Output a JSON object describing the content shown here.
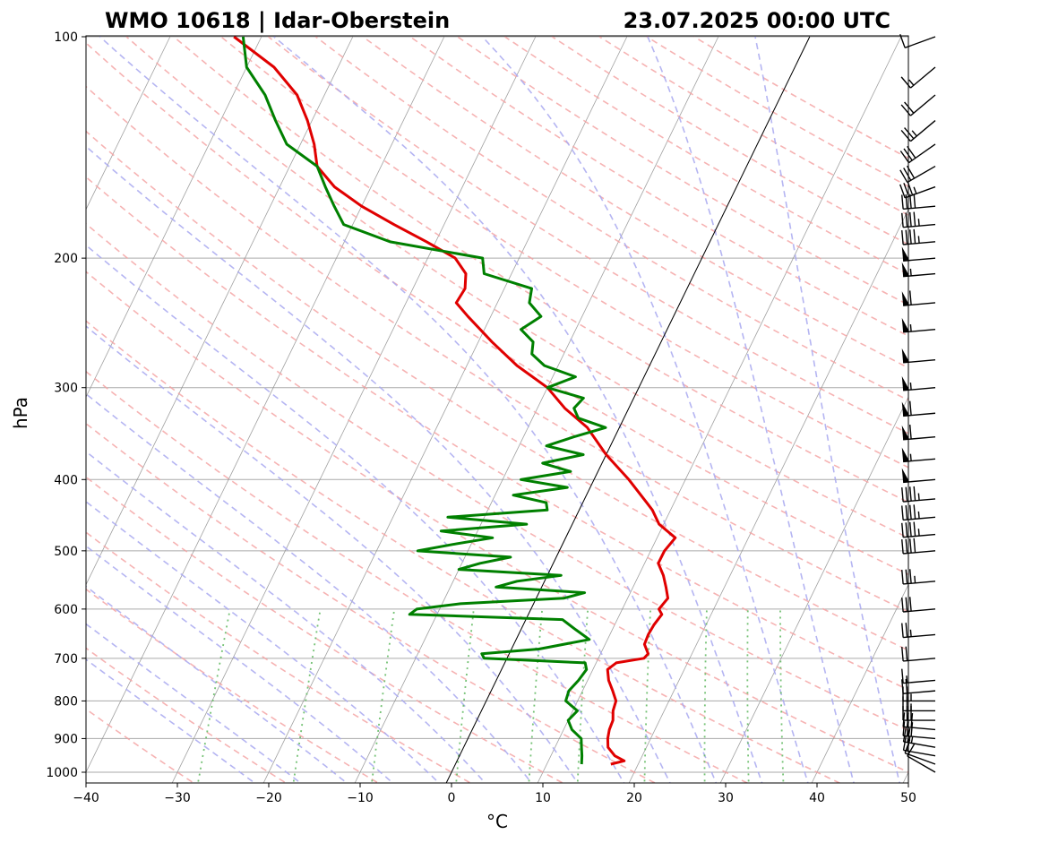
{
  "chart_data": {
    "type": "line",
    "subtype": "skew-T log-P diagram",
    "title_left": "WMO 10618 | Idar-Oberstein",
    "title_right": "23.07.2025 00:00 UTC",
    "xlabel": "°C",
    "ylabel": "hPa",
    "x_ticks": [
      -40,
      -30,
      -20,
      -10,
      0,
      10,
      20,
      30,
      40,
      50
    ],
    "y_ticks": [
      100,
      200,
      300,
      400,
      500,
      600,
      700,
      800,
      900,
      1000
    ],
    "xlim": [
      -40,
      50
    ],
    "ylim": [
      1050,
      100
    ],
    "y_scale": "log",
    "grid": true,
    "legend": "none",
    "colors": {
      "temperature": "#e00000",
      "dewpoint": "#008000",
      "dry_adiabats": "#f4a0a0",
      "moist_adiabats": "#a8a8f0",
      "mixing_ratio": "#66bb66",
      "isotherms": "#888888",
      "zero_isotherm": "#000000"
    },
    "series": [
      {
        "name": "temperature",
        "pressure": [
          975,
          965,
          950,
          925,
          900,
          875,
          850,
          825,
          800,
          775,
          750,
          725,
          710,
          700,
          690,
          670,
          650,
          630,
          610,
          600,
          580,
          560,
          540,
          520,
          500,
          480,
          460,
          440,
          430,
          400,
          370,
          340,
          320,
          300,
          280,
          260,
          240,
          230,
          220,
          210,
          200,
          190,
          180,
          170,
          160,
          150,
          140,
          130,
          120,
          110,
          100
        ],
        "values": [
          17.0,
          18.3,
          17.0,
          15.8,
          15.3,
          15.0,
          14.9,
          14.4,
          14.2,
          13.3,
          12.3,
          11.6,
          12.2,
          15.0,
          15.2,
          14.3,
          14.2,
          14.3,
          14.6,
          14.0,
          14.4,
          13.6,
          12.7,
          11.5,
          11.5,
          12.0,
          9.5,
          8.0,
          7.0,
          3.8,
          0.0,
          -3.5,
          -7.0,
          -10.0,
          -14.5,
          -18.5,
          -22.5,
          -24.5,
          -24.3,
          -25.0,
          -27.0,
          -31.0,
          -35.5,
          -40.0,
          -44.0,
          -47.0,
          -48.5,
          -50.5,
          -53.0,
          -57.0,
          -63.0
        ]
      },
      {
        "name": "dewpoint",
        "pressure": [
          975,
          950,
          925,
          900,
          875,
          850,
          825,
          800,
          775,
          750,
          725,
          710,
          700,
          690,
          680,
          660,
          640,
          620,
          610,
          600,
          590,
          580,
          570,
          560,
          550,
          540,
          530,
          520,
          510,
          500,
          490,
          480,
          470,
          460,
          450,
          440,
          430,
          420,
          410,
          400,
          390,
          380,
          370,
          360,
          350,
          340,
          330,
          320,
          310,
          300,
          290,
          280,
          270,
          260,
          250,
          240,
          230,
          220,
          210,
          200,
          190,
          180,
          170,
          160,
          150,
          140,
          130,
          120,
          110,
          100
        ],
        "values": [
          13.8,
          13.4,
          12.9,
          12.4,
          10.9,
          10.0,
          10.5,
          8.7,
          8.5,
          9.0,
          9.3,
          8.8,
          -2.5,
          -3.0,
          3.0,
          8.0,
          6.0,
          4.0,
          -13.0,
          -12.5,
          -8.0,
          3.0,
          5.0,
          -5.0,
          -3.0,
          1.5,
          -10.0,
          -8.0,
          -5.0,
          -15.5,
          -12.0,
          -8.0,
          -14.0,
          -5.0,
          -14.0,
          -3.5,
          -4.0,
          -8.0,
          -2.5,
          -8.0,
          -3.0,
          -6.5,
          -2.5,
          -7.0,
          -4.5,
          -1.5,
          -5.0,
          -6.0,
          -5.5,
          -10.0,
          -7.5,
          -11.5,
          -13.5,
          -14.0,
          -16.0,
          -14.5,
          -16.5,
          -17.0,
          -23.0,
          -24.0,
          -35.0,
          -41.0,
          -43.0,
          -45.0,
          -47.0,
          -51.5,
          -54.0,
          -56.5,
          -60.0,
          -62.0
        ]
      }
    ],
    "wind_barbs": {
      "pressure": [
        1000,
        975,
        950,
        925,
        900,
        875,
        850,
        825,
        800,
        775,
        750,
        700,
        650,
        600,
        550,
        500,
        475,
        450,
        425,
        400,
        375,
        350,
        325,
        300,
        275,
        250,
        230,
        210,
        200,
        190,
        180,
        170,
        160,
        150,
        140,
        130,
        120,
        110,
        100
      ],
      "speed_kt": [
        10,
        10,
        20,
        25,
        30,
        30,
        30,
        25,
        25,
        20,
        15,
        20,
        25,
        30,
        35,
        40,
        45,
        45,
        45,
        50,
        55,
        60,
        60,
        55,
        50,
        55,
        60,
        55,
        50,
        45,
        45,
        40,
        35,
        30,
        30,
        25,
        20,
        15,
        10
      ],
      "direction_deg": [
        300,
        290,
        280,
        280,
        275,
        275,
        270,
        270,
        270,
        265,
        265,
        265,
        265,
        265,
        265,
        265,
        265,
        265,
        265,
        265,
        265,
        265,
        265,
        265,
        265,
        265,
        265,
        265,
        265,
        265,
        265,
        265,
        250,
        240,
        235,
        230,
        230,
        230,
        250
      ]
    }
  }
}
